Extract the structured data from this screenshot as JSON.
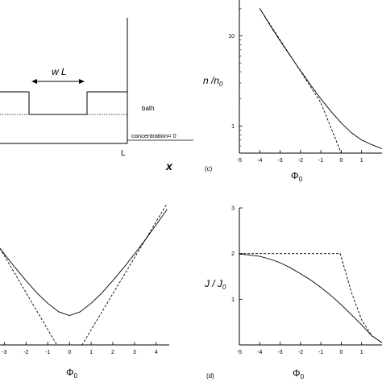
{
  "chart_data": [
    {
      "id": "a",
      "type": "diagram",
      "labels": {
        "width": "w L",
        "bath": "bath",
        "concentration": "concentration= 0",
        "L": "L",
        "x": "x"
      }
    },
    {
      "id": "c",
      "type": "line",
      "panel_label": "(c)",
      "yscale": "log",
      "xlim": [
        -5,
        2
      ],
      "ylim": [
        0.5,
        25
      ],
      "xticks": [
        -5,
        -4,
        -3,
        -2,
        -1,
        0,
        1
      ],
      "yticks": [
        1,
        10
      ],
      "xlabel": "Φ",
      "xlabel_sub": "0",
      "ylabel": "n /n",
      "ylabel_sub": "0",
      "series": [
        {
          "style": "solid",
          "x": [
            -4,
            -3.5,
            -3,
            -2.5,
            -2,
            -1.5,
            -1,
            -0.5,
            0,
            0.5,
            1,
            1.5,
            2
          ],
          "y": [
            20.2,
            13.2,
            8.8,
            6.0,
            4.1,
            2.85,
            2.0,
            1.45,
            1.08,
            0.84,
            0.7,
            0.62,
            0.56
          ]
        },
        {
          "style": "dashed",
          "x": [
            -4,
            -3,
            -2,
            -1,
            0,
            0.1,
            2
          ],
          "y": [
            20.1,
            9.0,
            4.05,
            1.82,
            0.5,
            0.5,
            0.5
          ]
        }
      ]
    },
    {
      "id": "b",
      "type": "line",
      "xlim": [
        -3.2,
        4.6
      ],
      "ylim": [
        0,
        6.5
      ],
      "xticks": [
        -3,
        -2,
        -1,
        0,
        1,
        2,
        3,
        4
      ],
      "xlabel": "Φ",
      "xlabel_sub": "0",
      "series": [
        {
          "style": "solid",
          "x": [
            -3.2,
            -3,
            -2.5,
            -2,
            -1.5,
            -1,
            -0.5,
            0,
            0.5,
            1,
            1.5,
            2,
            2.5,
            3,
            3.5,
            4,
            4.5
          ],
          "y": [
            4.1,
            3.86,
            3.28,
            2.73,
            2.21,
            1.77,
            1.41,
            1.25,
            1.41,
            1.77,
            2.21,
            2.73,
            3.28,
            3.86,
            4.47,
            5.1,
            5.75
          ]
        },
        {
          "style": "dashed",
          "x": [
            -3.2,
            -0.58,
            -0.58,
            0.58,
            0.58,
            4.5
          ],
          "y": [
            4.1,
            0,
            0,
            0,
            0,
            6.0
          ]
        }
      ]
    },
    {
      "id": "d",
      "type": "line",
      "panel_label": "(d)",
      "xlim": [
        -5,
        2
      ],
      "ylim": [
        0,
        3
      ],
      "xticks": [
        -5,
        -4,
        -3,
        -2,
        -1,
        0,
        1
      ],
      "yticks": [
        1,
        2,
        3
      ],
      "xlabel": "Φ",
      "xlabel_sub": "0",
      "ylabel": "J / J",
      "ylabel_sub": "0",
      "series": [
        {
          "style": "solid",
          "x": [
            -5,
            -4.5,
            -4,
            -3.5,
            -3,
            -2.5,
            -2,
            -1.5,
            -1,
            -0.5,
            0,
            0.5,
            1,
            1.5,
            2
          ],
          "y": [
            1.99,
            1.97,
            1.94,
            1.88,
            1.8,
            1.69,
            1.56,
            1.42,
            1.26,
            1.08,
            0.88,
            0.66,
            0.44,
            0.2,
            0.05
          ]
        },
        {
          "style": "dashed",
          "x": [
            -5,
            -0.05,
            -0.05,
            0.5,
            1,
            1.5,
            2
          ],
          "y": [
            2.0,
            2.0,
            2.0,
            1.15,
            0.55,
            0.2,
            0.05
          ]
        }
      ]
    }
  ]
}
